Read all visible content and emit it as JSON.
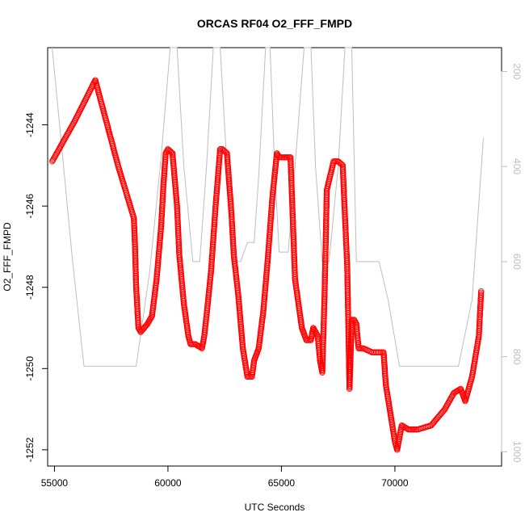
{
  "chart_data": {
    "type": "scatter",
    "title": "ORCAS RF04 O2_FFF_FMPD",
    "xlabel": "UTC Seconds",
    "ylabel": "O2_FFF_FMPD",
    "xlim": [
      54700,
      74700
    ],
    "ylim": [
      -1252.4,
      -1242.1
    ],
    "x_ticks": [
      55000,
      60000,
      65000,
      70000
    ],
    "y_ticks": [
      -1252,
      -1250,
      -1248,
      -1246,
      -1244
    ],
    "y2_lim": [
      1030,
      150
    ],
    "y2_ticks": [
      200,
      400,
      600,
      800,
      1000
    ],
    "grid": false,
    "colors": {
      "points": "#ff0000",
      "secondary_line": "#bebebe",
      "secondary_axis": "#bdbdbd"
    },
    "series": [
      {
        "marker": "open-circle",
        "axis": "left",
        "x": [
          54900,
          55900,
          56800,
          57800,
          58500,
          58550,
          58600,
          58700,
          58800,
          59100,
          59300,
          59500,
          59700,
          59800,
          59900,
          60000,
          60200,
          60400,
          60500,
          60700,
          60900,
          61000,
          61200,
          61500,
          61600,
          61700,
          61900,
          62100,
          62300,
          62400,
          62600,
          62800,
          62900,
          63100,
          63300,
          63500,
          63600,
          63700,
          63800,
          64000,
          64200,
          64400,
          64600,
          64800,
          64900,
          65100,
          65400,
          65600,
          65800,
          65900,
          66100,
          66300,
          66400,
          66500,
          66600,
          66700,
          66800,
          66900,
          67000,
          67300,
          67500,
          67700,
          67900,
          68000,
          68100,
          68200,
          68300,
          68400,
          68600,
          69000,
          69500,
          69600,
          69800,
          70000,
          70100,
          70300,
          70600,
          71000,
          71600,
          72200,
          72600,
          72900,
          73100,
          73400,
          73700,
          73800
        ],
        "y": [
          -1244.9,
          -1243.9,
          -1242.9,
          -1245.0,
          -1246.3,
          -1247.0,
          -1248.0,
          -1249.0,
          -1249.1,
          -1248.9,
          -1248.7,
          -1247.8,
          -1246.5,
          -1245.5,
          -1244.7,
          -1244.6,
          -1244.7,
          -1246.0,
          -1247.2,
          -1248.4,
          -1249.2,
          -1249.4,
          -1249.4,
          -1249.5,
          -1249.2,
          -1248.7,
          -1247.6,
          -1246.0,
          -1244.6,
          -1244.6,
          -1244.7,
          -1246.2,
          -1247.2,
          -1248.2,
          -1249.5,
          -1250.2,
          -1250.2,
          -1250.2,
          -1249.8,
          -1249.5,
          -1248.6,
          -1247.3,
          -1245.8,
          -1244.7,
          -1244.8,
          -1244.8,
          -1244.8,
          -1247.8,
          -1248.6,
          -1249.0,
          -1249.3,
          -1249.3,
          -1249.0,
          -1249.1,
          -1249.2,
          -1249.8,
          -1250.1,
          -1248.2,
          -1245.6,
          -1244.9,
          -1244.9,
          -1245.0,
          -1247.5,
          -1250.5,
          -1248.8,
          -1248.8,
          -1248.9,
          -1249.5,
          -1249.5,
          -1249.6,
          -1249.6,
          -1250.4,
          -1251.1,
          -1251.8,
          -1252.0,
          -1251.4,
          -1251.5,
          -1251.5,
          -1251.4,
          -1251.0,
          -1250.6,
          -1250.5,
          -1250.8,
          -1250.2,
          -1249.2,
          -1248.1
        ]
      }
    ],
    "secondary_series": {
      "axis": "right",
      "x": [
        54900,
        55300,
        55800,
        56300,
        58600,
        59200,
        59700,
        60100,
        60400,
        60700,
        61100,
        61400,
        61700,
        62000,
        62300,
        62600,
        62900,
        63200,
        63500,
        63800,
        64000,
        64300,
        64500,
        64700,
        64900,
        65300,
        65600,
        66000,
        66300,
        66500,
        66800,
        67100,
        67500,
        67800,
        68100,
        68300,
        68800,
        69300,
        69700,
        70200,
        72800,
        73400,
        73900
      ],
      "y": [
        150,
        350,
        600,
        820,
        820,
        620,
        380,
        150,
        150,
        400,
        600,
        600,
        400,
        150,
        150,
        400,
        600,
        600,
        560,
        560,
        420,
        150,
        150,
        400,
        580,
        580,
        400,
        150,
        150,
        400,
        600,
        600,
        400,
        150,
        150,
        600,
        600,
        600,
        680,
        820,
        820,
        680,
        340
      ]
    }
  }
}
